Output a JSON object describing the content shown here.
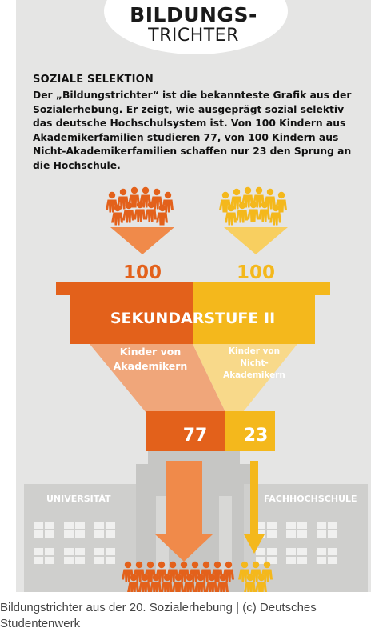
{
  "title": {
    "line1": "BILDUNGS-",
    "line2": "TRICHTER"
  },
  "intro": {
    "heading": "SOZIALE SELEKTION",
    "text": "Der „Bildungstrichter“ ist die bekannteste Grafik aus der Sozialerhebung. Er zeigt, wie ausgeprägt sozial selektiv das deutsche Hochschulsystem ist. Von 100 Kindern aus Akademikerfamilien studieren 77, von 100 Kindern aus Nicht-Akademikerfamilien schaffen nur 23 den Sprung an die Hochschule."
  },
  "funnel": {
    "left_input": "100",
    "right_input": "100",
    "stage_label": "SEKUNDARSTUFE II",
    "left_group_label": [
      "Kinder von",
      "Akademikern"
    ],
    "right_group_label": [
      "Kinder von",
      "Nicht-",
      "Akademikern"
    ],
    "left_output": "77",
    "right_output": "23"
  },
  "destinations": {
    "left": "UNIVERSITÄT",
    "right": "FACHHOCHSCHULE"
  },
  "colors": {
    "academic": "#e3611b",
    "academic_light": "#f0a67a",
    "non_academic": "#f4b81c",
    "non_academic_light": "#f8d98a",
    "building": "#cfcfcd"
  },
  "caption": "Bildungstrichter aus der 20. Sozialerhebung | (c) Deutsches Studentenwerk"
}
